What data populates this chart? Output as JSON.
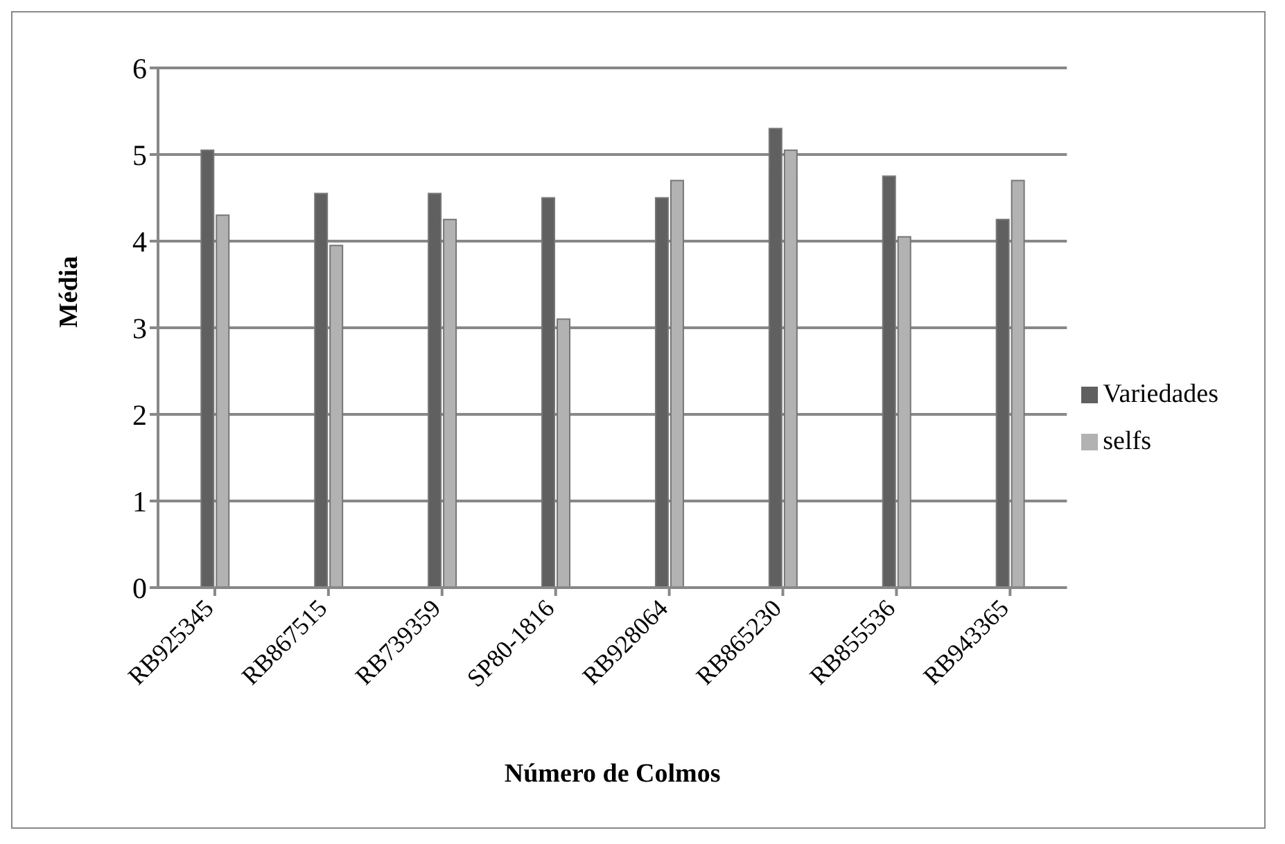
{
  "chart_data": {
    "type": "bar",
    "xlabel": "Número de Colmos",
    "ylabel": "Média",
    "categories": [
      "RB925345",
      "RB867515",
      "RB739359",
      "SP80-1816",
      "RB928064",
      "RB865230",
      "RB855536",
      "RB943365"
    ],
    "series": [
      {
        "name": "Variedades",
        "color": "#606060",
        "values": [
          5.05,
          4.55,
          4.55,
          4.5,
          4.5,
          5.3,
          4.75,
          4.25
        ]
      },
      {
        "name": "selfs",
        "color": "#b2b2b2",
        "values": [
          4.3,
          3.95,
          4.25,
          3.1,
          4.7,
          5.05,
          4.05,
          4.7
        ]
      }
    ],
    "ylim": [
      0,
      6
    ],
    "yticks": [
      0,
      1,
      2,
      3,
      4,
      5,
      6
    ],
    "grid": "y",
    "legend": "right"
  }
}
